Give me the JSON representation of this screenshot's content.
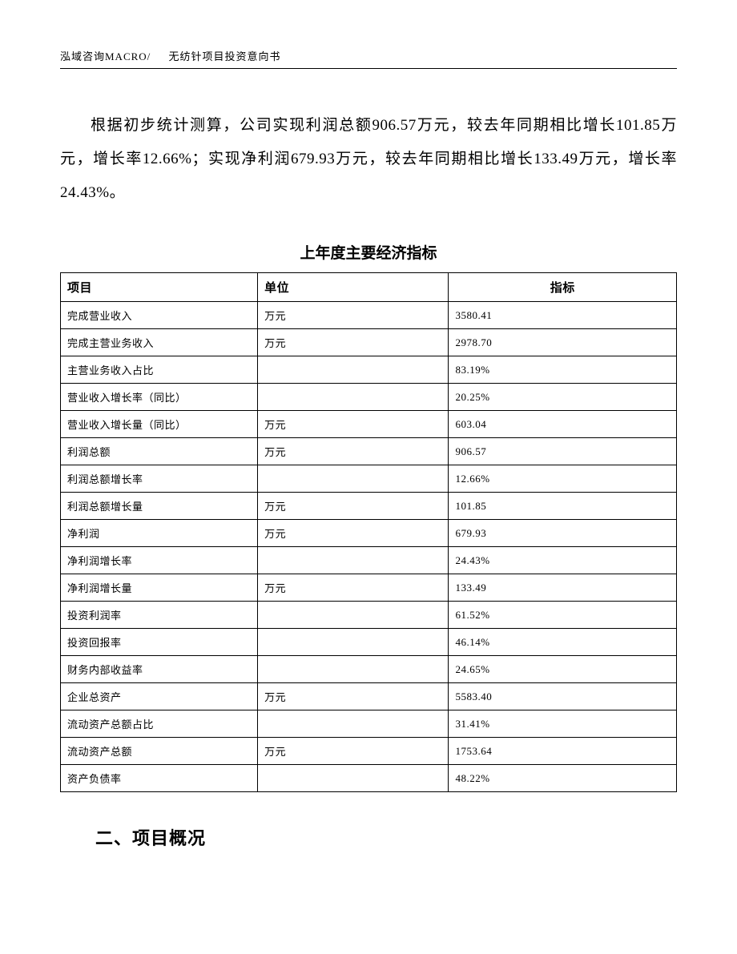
{
  "header": {
    "company": "泓域咨询MACRO/",
    "doc_title": "无纺针项目投资意向书"
  },
  "paragraph": "根据初步统计测算，公司实现利润总额906.57万元，较去年同期相比增长101.85万元，增长率12.66%；实现净利润679.93万元，较去年同期相比增长133.49万元，增长率24.43%。",
  "table": {
    "title": "上年度主要经济指标",
    "columns": [
      "项目",
      "单位",
      "指标"
    ],
    "rows": [
      [
        "完成营业收入",
        "万元",
        "3580.41"
      ],
      [
        "完成主营业务收入",
        "万元",
        "2978.70"
      ],
      [
        "主营业务收入占比",
        "",
        "83.19%"
      ],
      [
        "营业收入增长率（同比）",
        "",
        "20.25%"
      ],
      [
        "营业收入增长量（同比）",
        "万元",
        "603.04"
      ],
      [
        "利润总额",
        "万元",
        "906.57"
      ],
      [
        "利润总额增长率",
        "",
        "12.66%"
      ],
      [
        "利润总额增长量",
        "万元",
        "101.85"
      ],
      [
        "净利润",
        "万元",
        "679.93"
      ],
      [
        "净利润增长率",
        "",
        "24.43%"
      ],
      [
        "净利润增长量",
        "万元",
        "133.49"
      ],
      [
        "投资利润率",
        "",
        "61.52%"
      ],
      [
        "投资回报率",
        "",
        "46.14%"
      ],
      [
        "财务内部收益率",
        "",
        "24.65%"
      ],
      [
        "企业总资产",
        "万元",
        "5583.40"
      ],
      [
        "流动资产总额占比",
        "",
        "31.41%"
      ],
      [
        "流动资产总额",
        "万元",
        "1753.64"
      ],
      [
        "资产负债率",
        "",
        "48.22%"
      ]
    ]
  },
  "section_heading": "二、项目概况"
}
